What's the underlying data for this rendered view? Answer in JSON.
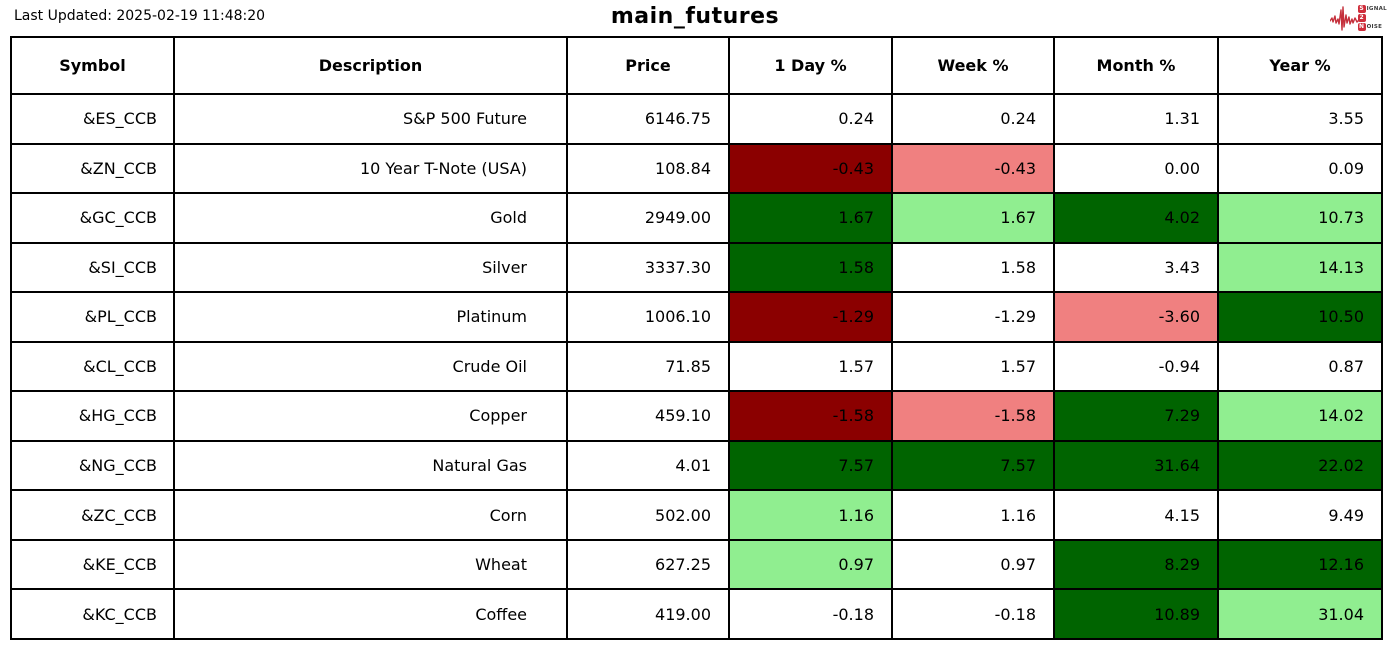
{
  "header": {
    "last_updated": "Last Updated: 2025-02-19 11:48:20",
    "title": "main_futures",
    "logo": {
      "letter_s": "S",
      "word_ignal": "IGNAL",
      "letter_2": "2",
      "letter_n": "N",
      "word_oise": "OISE"
    }
  },
  "colors": {
    "strong_negative": "#8B0000",
    "mild_negative": "#F08080",
    "strong_positive": "#006400",
    "mild_positive": "#90EE90",
    "neutral": "#FFFFFF",
    "logo_red": "#cf2e3b"
  },
  "table": {
    "columns": [
      "Symbol",
      "Description",
      "Price",
      "1 Day %",
      "Week %",
      "Month %",
      "Year %"
    ],
    "rows": [
      {
        "symbol": "&ES_CCB",
        "description": "S&P 500 Future",
        "price": "6146.75",
        "day": {
          "v": "0.24",
          "bg": "w"
        },
        "week": {
          "v": "0.24",
          "bg": "w"
        },
        "month": {
          "v": "1.31",
          "bg": "w"
        },
        "year": {
          "v": "3.55",
          "bg": "w"
        }
      },
      {
        "symbol": "&ZN_CCB",
        "description": "10 Year T-Note (USA)",
        "price": "108.84",
        "day": {
          "v": "-0.43",
          "bg": "dr"
        },
        "week": {
          "v": "-0.43",
          "bg": "lr"
        },
        "month": {
          "v": "0.00",
          "bg": "w"
        },
        "year": {
          "v": "0.09",
          "bg": "w"
        }
      },
      {
        "symbol": "&GC_CCB",
        "description": "Gold",
        "price": "2949.00",
        "day": {
          "v": "1.67",
          "bg": "dg"
        },
        "week": {
          "v": "1.67",
          "bg": "lg"
        },
        "month": {
          "v": "4.02",
          "bg": "dg"
        },
        "year": {
          "v": "10.73",
          "bg": "lg"
        }
      },
      {
        "symbol": "&SI_CCB",
        "description": "Silver",
        "price": "3337.30",
        "day": {
          "v": "1.58",
          "bg": "dg"
        },
        "week": {
          "v": "1.58",
          "bg": "w"
        },
        "month": {
          "v": "3.43",
          "bg": "w"
        },
        "year": {
          "v": "14.13",
          "bg": "lg"
        }
      },
      {
        "symbol": "&PL_CCB",
        "description": "Platinum",
        "price": "1006.10",
        "day": {
          "v": "-1.29",
          "bg": "dr"
        },
        "week": {
          "v": "-1.29",
          "bg": "w"
        },
        "month": {
          "v": "-3.60",
          "bg": "lr"
        },
        "year": {
          "v": "10.50",
          "bg": "dg"
        }
      },
      {
        "symbol": "&CL_CCB",
        "description": "Crude Oil",
        "price": "71.85",
        "day": {
          "v": "1.57",
          "bg": "w"
        },
        "week": {
          "v": "1.57",
          "bg": "w"
        },
        "month": {
          "v": "-0.94",
          "bg": "w"
        },
        "year": {
          "v": "0.87",
          "bg": "w"
        }
      },
      {
        "symbol": "&HG_CCB",
        "description": "Copper",
        "price": "459.10",
        "day": {
          "v": "-1.58",
          "bg": "dr"
        },
        "week": {
          "v": "-1.58",
          "bg": "lr"
        },
        "month": {
          "v": "7.29",
          "bg": "dg"
        },
        "year": {
          "v": "14.02",
          "bg": "lg"
        }
      },
      {
        "symbol": "&NG_CCB",
        "description": "Natural Gas",
        "price": "4.01",
        "day": {
          "v": "7.57",
          "bg": "dg"
        },
        "week": {
          "v": "7.57",
          "bg": "dg"
        },
        "month": {
          "v": "31.64",
          "bg": "dg"
        },
        "year": {
          "v": "22.02",
          "bg": "dg"
        }
      },
      {
        "symbol": "&ZC_CCB",
        "description": "Corn",
        "price": "502.00",
        "day": {
          "v": "1.16",
          "bg": "lg"
        },
        "week": {
          "v": "1.16",
          "bg": "w"
        },
        "month": {
          "v": "4.15",
          "bg": "w"
        },
        "year": {
          "v": "9.49",
          "bg": "w"
        }
      },
      {
        "symbol": "&KE_CCB",
        "description": "Wheat",
        "price": "627.25",
        "day": {
          "v": "0.97",
          "bg": "lg"
        },
        "week": {
          "v": "0.97",
          "bg": "w"
        },
        "month": {
          "v": "8.29",
          "bg": "dg"
        },
        "year": {
          "v": "12.16",
          "bg": "dg"
        }
      },
      {
        "symbol": "&KC_CCB",
        "description": "Coffee",
        "price": "419.00",
        "day": {
          "v": "-0.18",
          "bg": "w"
        },
        "week": {
          "v": "-0.18",
          "bg": "w"
        },
        "month": {
          "v": "10.89",
          "bg": "dg"
        },
        "year": {
          "v": "31.04",
          "bg": "lg"
        }
      }
    ]
  }
}
